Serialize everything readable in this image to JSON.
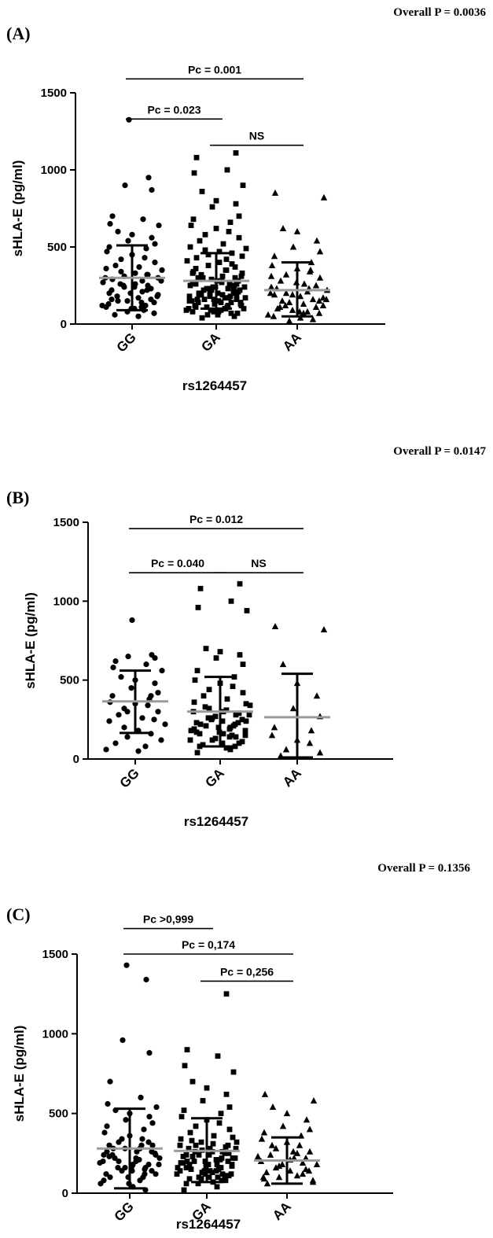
{
  "chart_data": [
    {
      "type": "scatter",
      "panel_label": "(A)",
      "overall_p": "Overall P = 0.0036",
      "ylabel": "sHLA-E (pg/ml)",
      "xlabel": "rs1264457",
      "categories": [
        "GG",
        "GA",
        "AA"
      ],
      "ylim": [
        0,
        1500
      ],
      "yticks": [
        "0",
        "500",
        "1000",
        "1500"
      ],
      "markers": [
        "circle",
        "square",
        "triangle"
      ],
      "summary": [
        {
          "group": "GG",
          "mean": 300,
          "sd_low": 90,
          "sd_high": 510
        },
        {
          "group": "GA",
          "mean": 280,
          "sd_low": 100,
          "sd_high": 460
        },
        {
          "group": "AA",
          "mean": 220,
          "sd_low": 50,
          "sd_high": 400
        }
      ],
      "comparisons": [
        {
          "label": "Pc = 0.001",
          "from": "GG",
          "to": "AA",
          "y": 1590
        },
        {
          "label": "Pc = 0.023",
          "from": "GG",
          "to": "GA",
          "y": 1330
        },
        {
          "label": "NS",
          "from": "GA",
          "to": "AA",
          "y": 1160
        }
      ],
      "series": [
        {
          "group": "GG",
          "values": [
            1325,
            950,
            900,
            870,
            700,
            680,
            650,
            640,
            600,
            580,
            560,
            540,
            520,
            500,
            490,
            470,
            450,
            430,
            420,
            400,
            380,
            370,
            360,
            350,
            340,
            330,
            320,
            310,
            300,
            290,
            280,
            270,
            260,
            250,
            240,
            230,
            220,
            210,
            200,
            190,
            180,
            170,
            160,
            150,
            140,
            130,
            120,
            110,
            100,
            90,
            80,
            70,
            60,
            50,
            300,
            280,
            260,
            240,
            220,
            200,
            180,
            160,
            140,
            120,
            100,
            320,
            250,
            230,
            150,
            110
          ]
        },
        {
          "group": "GA",
          "values": [
            1110,
            1080,
            1000,
            980,
            900,
            860,
            800,
            780,
            760,
            700,
            680,
            660,
            640,
            620,
            600,
            580,
            560,
            540,
            520,
            500,
            490,
            480,
            470,
            460,
            450,
            440,
            430,
            420,
            410,
            400,
            390,
            380,
            370,
            360,
            350,
            340,
            330,
            320,
            310,
            300,
            290,
            280,
            270,
            260,
            250,
            240,
            230,
            220,
            210,
            200,
            190,
            180,
            170,
            160,
            150,
            140,
            130,
            120,
            110,
            100,
            90,
            80,
            70,
            60,
            50,
            40,
            350,
            330,
            310,
            290,
            270,
            250,
            230,
            210,
            190,
            170,
            150,
            130,
            110,
            90,
            70,
            300,
            280,
            260,
            240,
            220,
            200,
            180,
            160,
            140,
            120,
            100,
            80,
            60,
            250,
            230,
            210,
            190,
            170,
            150,
            130,
            110,
            90,
            200,
            180,
            160,
            140,
            120,
            100,
            80,
            220,
            200,
            180,
            160,
            140,
            120,
            100,
            300,
            280,
            260,
            240,
            220
          ]
        },
        {
          "group": "AA",
          "values": [
            850,
            820,
            620,
            600,
            540,
            500,
            470,
            440,
            400,
            380,
            360,
            340,
            320,
            300,
            280,
            260,
            240,
            220,
            200,
            180,
            160,
            140,
            120,
            100,
            80,
            60,
            40,
            30,
            20,
            250,
            230,
            210,
            190,
            170,
            150,
            130,
            110,
            90,
            70,
            50,
            350,
            310,
            270,
            230,
            190,
            150,
            110,
            70,
            200,
            160,
            120,
            80
          ]
        }
      ]
    },
    {
      "type": "scatter",
      "panel_label": "(B)",
      "overall_p": "Overall P = 0.0147",
      "ylabel": "sHLA-E (pg/ml)",
      "xlabel": "rs1264457",
      "categories": [
        "GG",
        "GA",
        "AA"
      ],
      "ylim": [
        0,
        1500
      ],
      "yticks": [
        "0",
        "500",
        "1000",
        "1500"
      ],
      "markers": [
        "circle",
        "square",
        "triangle"
      ],
      "summary": [
        {
          "group": "GG",
          "mean": 365,
          "sd_low": 165,
          "sd_high": 560
        },
        {
          "group": "GA",
          "mean": 300,
          "sd_low": 80,
          "sd_high": 520
        },
        {
          "group": "AA",
          "mean": 265,
          "sd_low": 10,
          "sd_high": 540
        }
      ],
      "comparisons": [
        {
          "label": "Pc = 0.012",
          "from": "GG",
          "to": "AA",
          "y": 1460
        },
        {
          "label": "Pc = 0.040",
          "from": "GG",
          "to": "GA",
          "y": 1180
        },
        {
          "label": "NS",
          "from": "GA",
          "to": "AA",
          "y": 1180
        }
      ],
      "series": [
        {
          "group": "GG",
          "values": [
            880,
            660,
            650,
            640,
            620,
            600,
            580,
            560,
            520,
            500,
            480,
            450,
            420,
            400,
            380,
            360,
            350,
            340,
            320,
            300,
            280,
            260,
            240,
            220,
            200,
            180,
            160,
            140,
            120,
            100,
            80,
            60,
            50,
            400,
            300,
            250
          ]
        },
        {
          "group": "GA",
          "values": [
            1110,
            1080,
            1000,
            960,
            940,
            700,
            680,
            660,
            640,
            600,
            560,
            520,
            500,
            480,
            460,
            440,
            420,
            400,
            380,
            360,
            340,
            320,
            300,
            280,
            260,
            240,
            220,
            200,
            180,
            160,
            140,
            120,
            100,
            80,
            60,
            40,
            350,
            330,
            310,
            290,
            270,
            250,
            230,
            210,
            190,
            170,
            150,
            130,
            110,
            90,
            70,
            300,
            280,
            260,
            240,
            220,
            200,
            180,
            160,
            140,
            120,
            100,
            80,
            250,
            230,
            210,
            190,
            170,
            150
          ]
        },
        {
          "group": "AA",
          "values": [
            840,
            820,
            600,
            480,
            400,
            320,
            270,
            200,
            180,
            150,
            120,
            100,
            60,
            40,
            20
          ]
        }
      ]
    },
    {
      "type": "scatter",
      "panel_label": "(C)",
      "overall_p": "Overall P = 0.1356",
      "ylabel": "sHLA-E (pg/ml)",
      "xlabel": "rs1264457",
      "categories": [
        "GG",
        "GA",
        "AA"
      ],
      "ylim": [
        0,
        1500
      ],
      "yticks": [
        "0",
        "500",
        "1000",
        "1500"
      ],
      "markers": [
        "circle",
        "square",
        "triangle"
      ],
      "summary": [
        {
          "group": "GG",
          "mean": 280,
          "sd_low": 30,
          "sd_high": 530
        },
        {
          "group": "GA",
          "mean": 265,
          "sd_low": 70,
          "sd_high": 470
        },
        {
          "group": "AA",
          "mean": 205,
          "sd_low": 60,
          "sd_high": 350
        }
      ],
      "comparisons": [
        {
          "label": "Pc >0,999",
          "from": "GG",
          "to": "GA",
          "y": 1660
        },
        {
          "label": "Pc = 0,174",
          "from": "GG",
          "to": "AA",
          "y": 1500
        },
        {
          "label": "Pc = 0,256",
          "from": "GA",
          "to": "AA",
          "y": 1330
        }
      ],
      "series": [
        {
          "group": "GG",
          "values": [
            1430,
            1340,
            960,
            880,
            700,
            600,
            560,
            540,
            520,
            500,
            480,
            460,
            440,
            420,
            400,
            380,
            360,
            340,
            320,
            300,
            280,
            260,
            240,
            220,
            200,
            180,
            160,
            140,
            120,
            100,
            80,
            60,
            40,
            20,
            340,
            320,
            300,
            280,
            260,
            240,
            220,
            200,
            180,
            160,
            140,
            120,
            100,
            80,
            60,
            300,
            280,
            260,
            240,
            220,
            200,
            180,
            160,
            140,
            120,
            100,
            250,
            230,
            210,
            190,
            170,
            150
          ]
        },
        {
          "group": "GA",
          "values": [
            1250,
            900,
            860,
            800,
            760,
            700,
            660,
            620,
            580,
            540,
            520,
            500,
            480,
            460,
            440,
            420,
            400,
            380,
            360,
            340,
            320,
            300,
            280,
            260,
            240,
            220,
            200,
            180,
            160,
            140,
            120,
            100,
            80,
            60,
            40,
            20,
            350,
            330,
            310,
            290,
            270,
            250,
            230,
            210,
            190,
            170,
            150,
            130,
            110,
            90,
            70,
            300,
            280,
            260,
            240,
            220,
            200,
            180,
            160,
            140,
            120,
            100,
            80,
            60,
            250,
            230,
            210,
            190,
            170,
            150,
            130,
            110,
            90,
            200,
            180,
            160,
            140,
            120,
            100,
            320,
            300,
            280,
            260,
            240,
            220,
            200,
            180,
            160,
            140,
            120
          ]
        },
        {
          "group": "AA",
          "values": [
            620,
            580,
            540,
            500,
            460,
            420,
            400,
            380,
            360,
            340,
            320,
            300,
            280,
            260,
            240,
            220,
            200,
            180,
            160,
            140,
            120,
            100,
            80,
            60,
            250,
            230,
            210,
            190,
            170,
            150,
            130,
            110,
            90,
            70,
            300,
            260,
            220,
            180,
            140,
            100
          ]
        }
      ]
    }
  ]
}
